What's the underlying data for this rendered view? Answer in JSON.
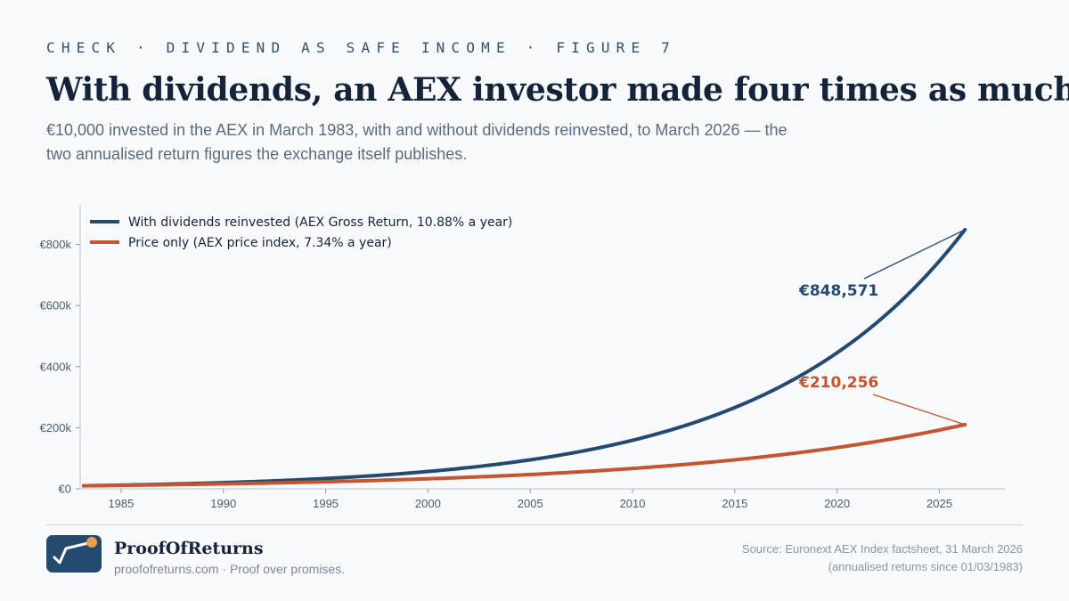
{
  "header": {
    "eyebrow": "CHECK · DIVIDEND AS SAFE INCOME · FIGURE 7",
    "title": "With dividends, an AEX investor made four times as much.",
    "subtitle": "€10,000 invested in the AEX in March 1983, with and without dividends reinvested, to March 2026 — the two annualised return figures the exchange itself publishes."
  },
  "chart_data": {
    "type": "line",
    "start_value": 10000,
    "start_year": 1983.17,
    "end_year": 2026.25,
    "xlim": [
      1983,
      2028.2
    ],
    "ylim": [
      0,
      930000
    ],
    "x_ticks": [
      1985,
      1990,
      1995,
      2000,
      2005,
      2010,
      2015,
      2020,
      2025
    ],
    "x_tick_labels": [
      "1985",
      "1990",
      "1995",
      "2000",
      "2005",
      "2010",
      "2015",
      "2020",
      "2025"
    ],
    "y_ticks": [
      0,
      200000,
      400000,
      600000,
      800000
    ],
    "y_tick_labels": [
      "€0",
      "€200k",
      "€400k",
      "€600k",
      "€800k"
    ],
    "legend_position": "top-left",
    "series": [
      {
        "name": "With dividends reinvested (AEX Gross Return, 10.88% a year)",
        "annual_return": 0.1088,
        "end_value": 848571,
        "end_label": "€848,571",
        "color": "#244a70"
      },
      {
        "name": "Price only (AEX price index, 7.34% a year)",
        "annual_return": 0.0734,
        "end_value": 210256,
        "end_label": "€210,256",
        "color": "#c4552e"
      }
    ]
  },
  "footer": {
    "brand_name": "ProofOfReturns",
    "brand_tagline": "proofofreturns.com · Proof over promises.",
    "source_line1": "Source: Euronext AEX Index factsheet, 31 March 2026",
    "source_line2": "(annualised returns since 01/03/1983)"
  }
}
